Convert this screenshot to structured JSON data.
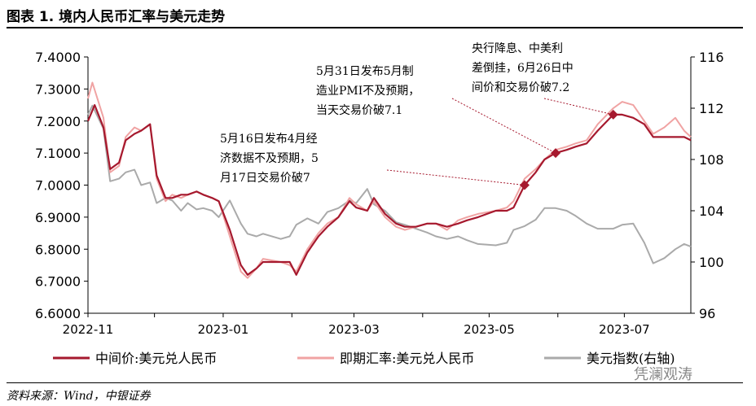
{
  "header": {
    "title": "图表 1. 境内人民币汇率与美元走势"
  },
  "footer": {
    "source": "资料来源：Wind，中银证券",
    "watermark": "凭澜观涛"
  },
  "chart_data": {
    "type": "line",
    "title": "",
    "x_ticks": [
      "2022-11",
      "2023-01",
      "2023-03",
      "2023-05",
      "2023-07"
    ],
    "x_range": [
      "2022-11-01",
      "2023-07-31"
    ],
    "y_left": {
      "range": [
        6.6,
        7.4
      ],
      "ticks": [
        "6.6000",
        "6.7000",
        "6.8000",
        "6.9000",
        "7.0000",
        "7.1000",
        "7.2000",
        "7.3000",
        "7.4000"
      ]
    },
    "y_right": {
      "range": [
        96,
        116
      ],
      "ticks": [
        "96",
        "100",
        "104",
        "108",
        "112",
        "116"
      ]
    },
    "grid": false,
    "legend_position": "bottom",
    "series": [
      {
        "name": "中间价:美元兑人民币",
        "axis": "left",
        "color": "#a6192e",
        "x": [
          "2022-11-01",
          "2022-11-04",
          "2022-11-08",
          "2022-11-11",
          "2022-11-15",
          "2022-11-18",
          "2022-11-22",
          "2022-11-25",
          "2022-11-29",
          "2022-12-02",
          "2022-12-06",
          "2022-12-09",
          "2022-12-13",
          "2022-12-16",
          "2022-12-20",
          "2022-12-23",
          "2022-12-27",
          "2022-12-30",
          "2023-01-04",
          "2023-01-09",
          "2023-01-12",
          "2023-01-16",
          "2023-01-19",
          "2023-01-27",
          "2023-01-31",
          "2023-02-03",
          "2023-02-08",
          "2023-02-13",
          "2023-02-17",
          "2023-02-22",
          "2023-02-27",
          "2023-03-02",
          "2023-03-07",
          "2023-03-10",
          "2023-03-15",
          "2023-03-20",
          "2023-03-24",
          "2023-03-29",
          "2023-04-03",
          "2023-04-07",
          "2023-04-12",
          "2023-04-17",
          "2023-04-21",
          "2023-04-26",
          "2023-05-04",
          "2023-05-09",
          "2023-05-12",
          "2023-05-17",
          "2023-05-22",
          "2023-05-26",
          "2023-05-31",
          "2023-06-05",
          "2023-06-09",
          "2023-06-14",
          "2023-06-19",
          "2023-06-26",
          "2023-06-30",
          "2023-07-05",
          "2023-07-10",
          "2023-07-14",
          "2023-07-19",
          "2023-07-24",
          "2023-07-28",
          "2023-07-31"
        ],
        "y": [
          7.2,
          7.25,
          7.18,
          7.05,
          7.07,
          7.14,
          7.16,
          7.17,
          7.19,
          7.03,
          6.96,
          6.96,
          6.97,
          6.97,
          6.98,
          6.97,
          6.96,
          6.95,
          6.86,
          6.75,
          6.72,
          6.74,
          6.76,
          6.76,
          6.76,
          6.72,
          6.79,
          6.84,
          6.87,
          6.9,
          6.95,
          6.93,
          6.92,
          6.96,
          6.91,
          6.88,
          6.87,
          6.87,
          6.88,
          6.88,
          6.87,
          6.88,
          6.89,
          6.9,
          6.92,
          6.92,
          6.93,
          7.0,
          7.04,
          7.08,
          7.1,
          7.11,
          7.12,
          7.13,
          7.17,
          7.22,
          7.22,
          7.21,
          7.19,
          7.15,
          7.15,
          7.15,
          7.15,
          7.14
        ]
      },
      {
        "name": "即期汇率:美元兑人民币",
        "axis": "left",
        "color": "#f0a3a3",
        "x": [
          "2022-11-01",
          "2022-11-03",
          "2022-11-08",
          "2022-11-11",
          "2022-11-15",
          "2022-11-18",
          "2022-11-22",
          "2022-11-25",
          "2022-11-29",
          "2022-12-02",
          "2022-12-06",
          "2022-12-09",
          "2022-12-13",
          "2022-12-16",
          "2022-12-20",
          "2022-12-23",
          "2022-12-27",
          "2022-12-30",
          "2023-01-04",
          "2023-01-09",
          "2023-01-12",
          "2023-01-16",
          "2023-01-19",
          "2023-01-27",
          "2023-01-31",
          "2023-02-03",
          "2023-02-08",
          "2023-02-13",
          "2023-02-17",
          "2023-02-22",
          "2023-02-27",
          "2023-03-02",
          "2023-03-07",
          "2023-03-10",
          "2023-03-15",
          "2023-03-20",
          "2023-03-24",
          "2023-03-29",
          "2023-04-03",
          "2023-04-07",
          "2023-04-12",
          "2023-04-17",
          "2023-04-21",
          "2023-04-26",
          "2023-05-04",
          "2023-05-09",
          "2023-05-12",
          "2023-05-17",
          "2023-05-22",
          "2023-05-26",
          "2023-05-31",
          "2023-06-05",
          "2023-06-09",
          "2023-06-14",
          "2023-06-19",
          "2023-06-26",
          "2023-06-30",
          "2023-07-05",
          "2023-07-10",
          "2023-07-14",
          "2023-07-19",
          "2023-07-24",
          "2023-07-28",
          "2023-07-31"
        ],
        "y": [
          7.27,
          7.32,
          7.21,
          7.04,
          7.06,
          7.15,
          7.18,
          7.17,
          7.19,
          7.02,
          6.95,
          6.97,
          6.96,
          6.97,
          6.98,
          6.97,
          6.96,
          6.95,
          6.84,
          6.73,
          6.71,
          6.74,
          6.77,
          6.76,
          6.75,
          6.73,
          6.8,
          6.85,
          6.88,
          6.9,
          6.96,
          6.94,
          6.92,
          6.95,
          6.9,
          6.87,
          6.86,
          6.87,
          6.88,
          6.88,
          6.86,
          6.89,
          6.9,
          6.91,
          6.92,
          6.93,
          6.95,
          7.02,
          7.05,
          7.08,
          7.11,
          7.12,
          7.13,
          7.14,
          7.19,
          7.24,
          7.26,
          7.25,
          7.2,
          7.16,
          7.18,
          7.21,
          7.17,
          7.15
        ]
      },
      {
        "name": "美元指数(右轴)",
        "axis": "right",
        "color": "#aaaaaa",
        "x": [
          "2022-11-01",
          "2022-11-03",
          "2022-11-08",
          "2022-11-11",
          "2022-11-15",
          "2022-11-18",
          "2022-11-22",
          "2022-11-25",
          "2022-11-29",
          "2022-12-02",
          "2022-12-06",
          "2022-12-09",
          "2022-12-13",
          "2022-12-16",
          "2022-12-20",
          "2022-12-23",
          "2022-12-27",
          "2022-12-30",
          "2023-01-04",
          "2023-01-09",
          "2023-01-12",
          "2023-01-16",
          "2023-01-19",
          "2023-01-27",
          "2023-01-31",
          "2023-02-03",
          "2023-02-08",
          "2023-02-13",
          "2023-02-17",
          "2023-02-22",
          "2023-02-27",
          "2023-03-02",
          "2023-03-07",
          "2023-03-10",
          "2023-03-15",
          "2023-03-20",
          "2023-03-24",
          "2023-03-29",
          "2023-04-03",
          "2023-04-07",
          "2023-04-12",
          "2023-04-17",
          "2023-04-21",
          "2023-04-26",
          "2023-05-04",
          "2023-05-09",
          "2023-05-12",
          "2023-05-17",
          "2023-05-22",
          "2023-05-26",
          "2023-05-31",
          "2023-06-05",
          "2023-06-09",
          "2023-06-14",
          "2023-06-19",
          "2023-06-26",
          "2023-06-30",
          "2023-07-05",
          "2023-07-10",
          "2023-07-14",
          "2023-07-19",
          "2023-07-24",
          "2023-07-28",
          "2023-07-31"
        ],
        "y": [
          111.5,
          112.2,
          110.4,
          106.3,
          106.5,
          107.0,
          107.2,
          106.0,
          106.2,
          104.6,
          105.0,
          104.8,
          104.0,
          104.6,
          104.1,
          104.2,
          104.0,
          103.5,
          104.8,
          103.0,
          102.2,
          102.0,
          102.2,
          101.8,
          102.0,
          102.9,
          103.4,
          103.0,
          103.9,
          104.2,
          104.8,
          104.6,
          105.7,
          104.5,
          104.0,
          103.1,
          102.9,
          102.6,
          102.3,
          102.0,
          101.8,
          102.0,
          101.7,
          101.4,
          101.3,
          101.5,
          102.5,
          102.8,
          103.3,
          104.2,
          104.2,
          104.0,
          103.6,
          103.0,
          102.6,
          102.6,
          102.9,
          103.0,
          101.5,
          99.9,
          100.3,
          101.0,
          101.4,
          101.2
        ]
      }
    ],
    "markers": [
      {
        "series": 0,
        "x": "2023-05-17",
        "y": 7.0
      },
      {
        "series": 0,
        "x": "2023-05-31",
        "y": 7.1
      },
      {
        "series": 0,
        "x": "2023-06-26",
        "y": 7.22
      }
    ],
    "annotations": [
      {
        "lines": [
          "5月16日发布4月经",
          "济数据不及预期，5",
          "月17日交易价破7"
        ],
        "points_to": 0
      },
      {
        "lines": [
          "5月31日发布5月制",
          "造业PMI不及预期，",
          "当天交易价破7.1"
        ],
        "points_to": 1
      },
      {
        "lines": [
          "央行降息、中美利",
          "差倒挂，6月26日中",
          "间价和交易价破7.2"
        ],
        "points_to": 2
      }
    ]
  }
}
